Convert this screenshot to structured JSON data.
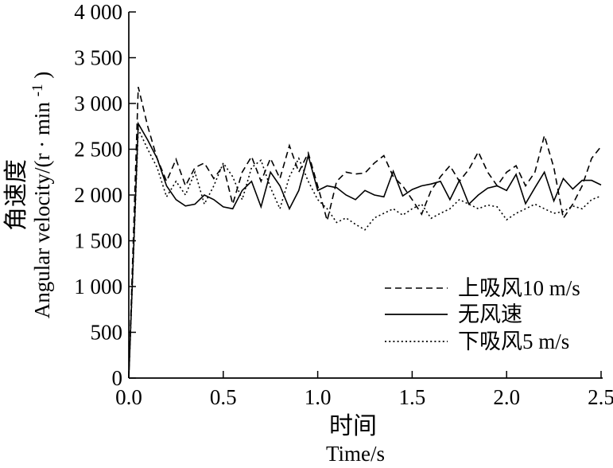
{
  "figure": {
    "background": "#ffffff",
    "line_color": "#000000"
  },
  "y_axis": {
    "title_zh": "角速度",
    "title_en_main": "Angular velocity/(r · min",
    "title_en_sup": "-1",
    "title_en_close": ")",
    "min": 0,
    "max": 4000,
    "step": 500,
    "tick_labels": [
      "0",
      "500",
      "1 000",
      "1 500",
      "2 000",
      "2 500",
      "3 000",
      "3 500",
      "4 000"
    ]
  },
  "x_axis": {
    "title_zh": "时间",
    "title_en": "Time/s",
    "min": 0,
    "max": 2.5,
    "step": 0.5,
    "tick_labels": [
      "0.0",
      "0.5",
      "1.0",
      "1.5",
      "2.0",
      "2.5"
    ]
  },
  "legend": [
    {
      "label": "上吸风10 m/s",
      "style": "dashed"
    },
    {
      "label": "无风速",
      "style": "solid"
    },
    {
      "label": "下吸风5 m/s",
      "style": "dotted"
    }
  ],
  "chart_data": {
    "type": "line",
    "title": "",
    "xlabel": "时间 Time/s",
    "ylabel": "角速度 Angular velocity/(r·min⁻¹)",
    "xlim": [
      0,
      2.5
    ],
    "ylim": [
      0,
      4000
    ],
    "x_start": 0,
    "x_step": 0.05,
    "grid": false,
    "legend_position": "lower right inside",
    "series": [
      {
        "name": "上吸风10 m/s",
        "line_style": "dashed",
        "color": "#000000",
        "values": [
          0,
          3180,
          2750,
          2400,
          2150,
          2390,
          2100,
          2300,
          2350,
          2180,
          2320,
          1900,
          2250,
          2420,
          2150,
          2400,
          2180,
          2540,
          2250,
          2460,
          2100,
          1720,
          2150,
          2250,
          2230,
          2240,
          2350,
          2430,
          2200,
          2100,
          1950,
          1790,
          2050,
          2200,
          2320,
          2150,
          2280,
          2470,
          2250,
          2100,
          2250,
          2320,
          2100,
          2250,
          2650,
          2300,
          1745,
          1900,
          2100,
          2400,
          2530
        ]
      },
      {
        "name": "无风速",
        "line_style": "solid",
        "color": "#000000",
        "values": [
          0,
          2780,
          2600,
          2400,
          2100,
          1950,
          1880,
          1900,
          2000,
          1950,
          1870,
          1850,
          2050,
          2150,
          1870,
          2250,
          2100,
          1850,
          2050,
          2430,
          2050,
          2100,
          2080,
          2000,
          1950,
          2050,
          2000,
          1980,
          2260,
          1990,
          2060,
          2100,
          2120,
          2150,
          1950,
          2160,
          1900,
          2000,
          2075,
          2100,
          2050,
          2225,
          1905,
          2080,
          2250,
          1935,
          2180,
          2065,
          2160,
          2160,
          2110
        ]
      },
      {
        "name": "下吸风5 m/s",
        "line_style": "dotted",
        "color": "#000000",
        "values": [
          0,
          2720,
          2500,
          2300,
          1980,
          2150,
          2000,
          2250,
          1900,
          2100,
          2350,
          2200,
          1950,
          2300,
          2380,
          2080,
          1850,
          2200,
          2400,
          2150,
          1950,
          1850,
          1700,
          1750,
          1680,
          1620,
          1750,
          1800,
          1850,
          1780,
          1850,
          1900,
          1745,
          1800,
          1850,
          1950,
          1900,
          1850,
          1890,
          1870,
          1730,
          1800,
          1850,
          1900,
          1850,
          1800,
          1820,
          1880,
          1850,
          1950,
          1990
        ]
      }
    ]
  }
}
